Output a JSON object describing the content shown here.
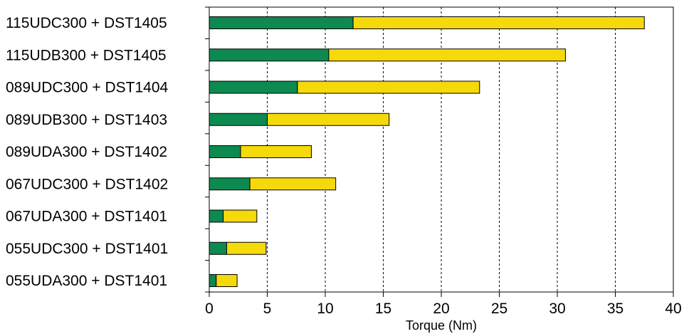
{
  "chart_data": {
    "type": "bar",
    "orientation": "horizontal",
    "stacked": true,
    "title": "",
    "xlabel": "Torque (Nm)",
    "ylabel": "",
    "xlim": [
      0,
      40
    ],
    "x_ticks": [
      "0",
      "5",
      "10",
      "15",
      "20",
      "25",
      "30",
      "35",
      "40"
    ],
    "grid": "vertical-dashed",
    "categories": [
      "115UDC300 + DST1405",
      "115UDB300 + DST1405",
      "089UDC300 + DST1404",
      "089UDB300 + DST1403",
      "089UDA300 + DST1402",
      "067UDC300 + DST1402",
      "067UDA300 + DST1401",
      "055UDC300 + DST1401",
      "055UDA300 + DST1401"
    ],
    "series": [
      {
        "color": "#0d8a4f",
        "values": [
          12.4,
          10.3,
          7.6,
          5.0,
          2.7,
          3.5,
          1.2,
          1.5,
          0.6
        ]
      },
      {
        "color": "#f5d90a",
        "values": [
          25.1,
          20.4,
          15.7,
          10.5,
          6.1,
          7.4,
          2.9,
          3.4,
          1.8
        ]
      }
    ]
  }
}
